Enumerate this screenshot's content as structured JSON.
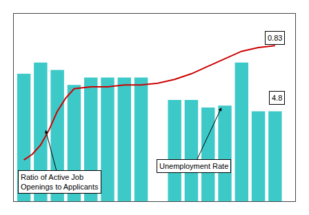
{
  "chart_data": {
    "type": "bar",
    "xlim": [
      -0.6,
      16.2
    ],
    "ylim": [
      0,
      10.0
    ],
    "xticks": [],
    "yticks": [],
    "tick_labels": false,
    "grid": false,
    "series": [
      {
        "type": "bar",
        "color": "#3ec9c9",
        "x": [
          0,
          1,
          2,
          3,
          4,
          5,
          6,
          7,
          9,
          10,
          11,
          12,
          13,
          14,
          15
        ],
        "values": [
          6.8,
          7.4,
          7.0,
          6.2,
          6.6,
          6.6,
          6.6,
          6.6,
          5.4,
          5.4,
          5.0,
          5.1,
          7.4,
          4.8,
          4.8
        ]
      },
      {
        "type": "line",
        "color": "#cc0000",
        "x": [
          0,
          0.5,
          1,
          1.5,
          2,
          2.5,
          3,
          4,
          5,
          6,
          7,
          8,
          9,
          10,
          11,
          12,
          13,
          14,
          15
        ],
        "values": [
          2.2,
          2.5,
          3.0,
          3.8,
          4.8,
          5.5,
          6.0,
          6.1,
          6.1,
          6.2,
          6.2,
          6.3,
          6.5,
          6.8,
          7.2,
          7.6,
          8.0,
          8.2,
          8.3
        ]
      }
    ],
    "annotations": [
      "Ratio of Active Job\nOpenings to Applicants",
      "Unemployment Rate",
      "0.83",
      "4.8"
    ]
  }
}
